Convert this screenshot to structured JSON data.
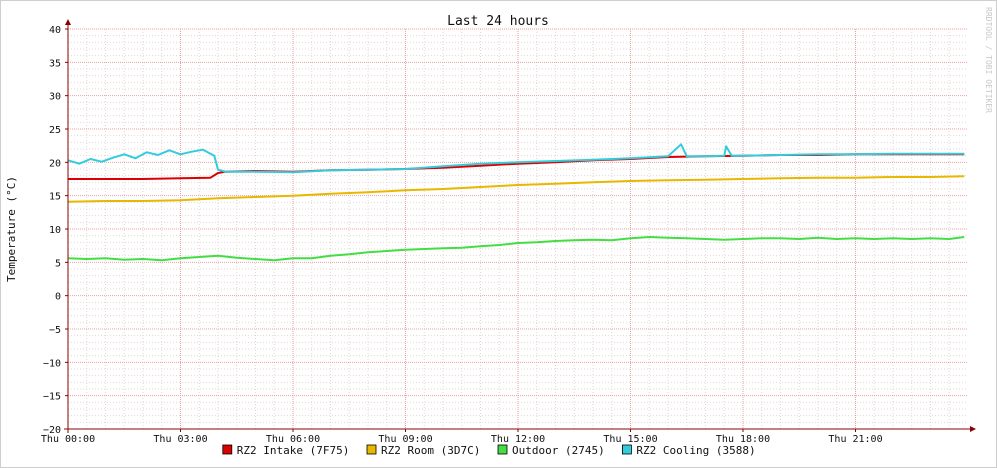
{
  "chart_data": {
    "type": "line",
    "title": "Last 24 hours",
    "ylabel": "Temperature (°C)",
    "xlabel": "",
    "watermark": "RRDTOOL / TOBI OETIKER",
    "ylim": [
      -20,
      40
    ],
    "yticks": [
      40,
      35,
      30,
      25,
      20,
      15,
      10,
      5,
      0,
      -5,
      -10,
      -15,
      -20
    ],
    "ytick_labels": [
      "40",
      "35",
      "30",
      "25",
      "20",
      "15",
      "10",
      "5",
      "0",
      "−5",
      "−10",
      "−15",
      "−20"
    ],
    "xlim": [
      0,
      24
    ],
    "x_unit": "hours since Thu 00:00",
    "xticks": [
      0,
      3,
      6,
      9,
      12,
      15,
      18,
      21
    ],
    "xtick_labels": [
      "Thu 00:00",
      "Thu 03:00",
      "Thu 06:00",
      "Thu 09:00",
      "Thu 12:00",
      "Thu 15:00",
      "Thu 18:00",
      "Thu 21:00"
    ],
    "grid": true,
    "legend_position": "bottom",
    "colors": {
      "background": "#ffffff",
      "major_grid": "#e8a0a0",
      "minor_grid": "#e6d6d6",
      "axis": "#8b0000",
      "text": "#111111",
      "watermark": "#c8c8c8"
    },
    "series": [
      {
        "name": "RZ2 Intake (7F75)",
        "color": "#dd0000",
        "x": [
          0,
          1,
          2,
          3,
          3.8,
          4.0,
          4.2,
          5,
          6,
          7,
          8,
          9,
          10,
          11,
          12,
          13,
          14,
          15,
          16,
          17,
          18,
          19,
          20,
          21,
          22,
          23,
          23.9
        ],
        "y": [
          17.5,
          17.5,
          17.5,
          17.6,
          17.7,
          18.4,
          18.6,
          18.7,
          18.6,
          18.8,
          18.9,
          19.0,
          19.2,
          19.5,
          19.8,
          20.0,
          20.3,
          20.5,
          20.8,
          20.9,
          21.0,
          21.1,
          21.1,
          21.2,
          21.2,
          21.2,
          21.2
        ]
      },
      {
        "name": "RZ2 Room (3D7C)",
        "color": "#e8b800",
        "x": [
          0,
          1,
          2,
          3,
          4,
          5,
          6,
          7,
          8,
          9,
          10,
          11,
          12,
          13,
          14,
          15,
          16,
          17,
          18,
          19,
          20,
          21,
          22,
          23,
          23.9
        ],
        "y": [
          14.1,
          14.2,
          14.2,
          14.3,
          14.6,
          14.8,
          15.0,
          15.3,
          15.5,
          15.8,
          16.0,
          16.3,
          16.6,
          16.8,
          17.0,
          17.2,
          17.3,
          17.4,
          17.5,
          17.6,
          17.7,
          17.7,
          17.8,
          17.8,
          17.9
        ]
      },
      {
        "name": "Outdoor (2745)",
        "color": "#44dd44",
        "x": [
          0,
          0.5,
          1,
          1.5,
          2,
          2.5,
          3,
          3.5,
          4,
          4.5,
          5,
          5.5,
          6,
          6.5,
          7,
          7.5,
          8,
          8.5,
          9,
          9.5,
          10,
          10.5,
          11,
          11.5,
          12,
          12.5,
          13,
          13.5,
          14,
          14.5,
          15,
          15.5,
          16,
          16.5,
          17,
          17.5,
          18,
          18.5,
          19,
          19.5,
          20,
          20.5,
          21,
          21.5,
          22,
          22.5,
          23,
          23.5,
          23.9
        ],
        "y": [
          5.6,
          5.5,
          5.6,
          5.4,
          5.5,
          5.3,
          5.6,
          5.8,
          6.0,
          5.7,
          5.5,
          5.3,
          5.6,
          5.6,
          6.0,
          6.2,
          6.5,
          6.7,
          6.9,
          7.0,
          7.1,
          7.2,
          7.4,
          7.6,
          7.9,
          8.0,
          8.2,
          8.3,
          8.4,
          8.3,
          8.6,
          8.8,
          8.7,
          8.6,
          8.5,
          8.4,
          8.5,
          8.6,
          8.6,
          8.5,
          8.7,
          8.5,
          8.6,
          8.5,
          8.6,
          8.5,
          8.6,
          8.5,
          8.8
        ]
      },
      {
        "name": "RZ2 Cooling (3588)",
        "color": "#33ccdd",
        "x": [
          0,
          0.3,
          0.6,
          0.9,
          1.2,
          1.5,
          1.8,
          2.1,
          2.4,
          2.7,
          3.0,
          3.3,
          3.6,
          3.9,
          4.0,
          4.2,
          5,
          6,
          7,
          8,
          9,
          10,
          11,
          12,
          13,
          14,
          15,
          16,
          16.35,
          16.5,
          17,
          17.5,
          17.55,
          17.7,
          18,
          19,
          20,
          21,
          22,
          23,
          23.9
        ],
        "y": [
          20.3,
          19.8,
          20.5,
          20.1,
          20.7,
          21.2,
          20.6,
          21.5,
          21.1,
          21.8,
          21.2,
          21.6,
          21.9,
          21.0,
          18.9,
          18.6,
          18.6,
          18.5,
          18.8,
          18.9,
          19.0,
          19.4,
          19.8,
          20.0,
          20.2,
          20.4,
          20.6,
          20.9,
          22.7,
          20.9,
          20.9,
          21.0,
          22.4,
          21.0,
          21.0,
          21.1,
          21.2,
          21.2,
          21.3,
          21.3,
          21.3
        ]
      }
    ]
  }
}
